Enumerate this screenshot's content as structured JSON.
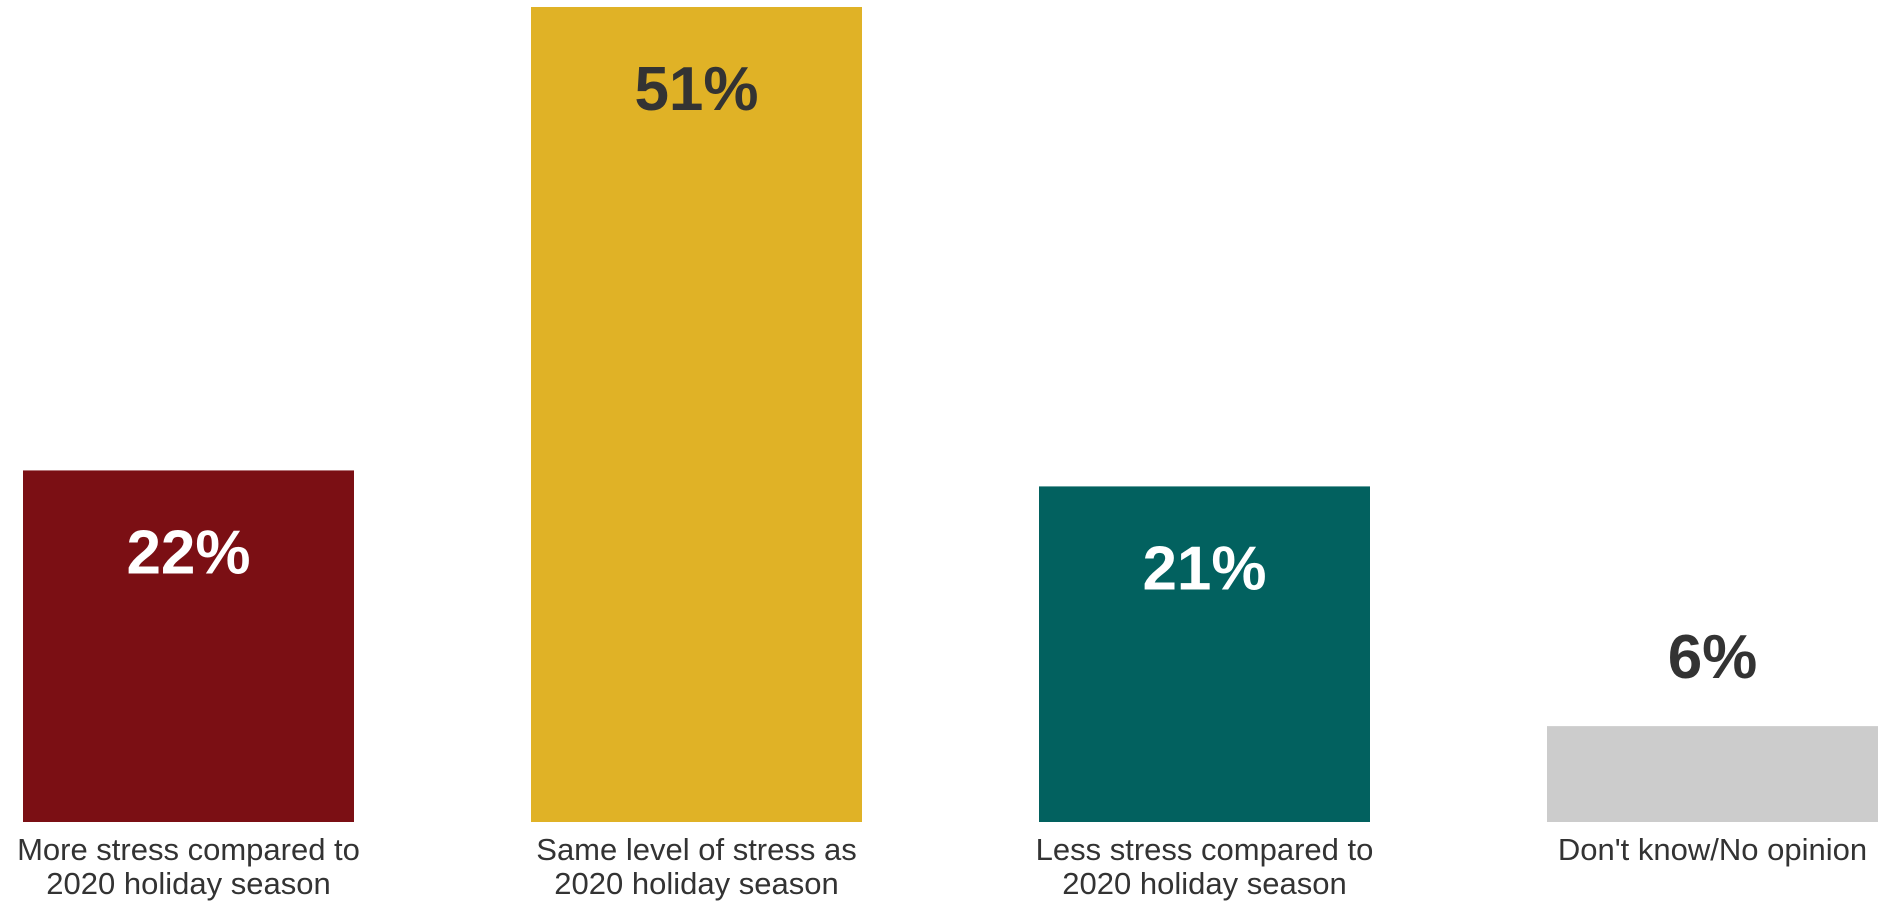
{
  "chart_data": {
    "type": "bar",
    "categories": [
      [
        "More stress compared to",
        "2020 holiday season"
      ],
      [
        "Same level of stress as",
        "2020 holiday season"
      ],
      [
        "Less stress compared to",
        "2020 holiday season"
      ],
      [
        "Don't know/No opinion"
      ]
    ],
    "values": [
      22,
      51,
      21,
      6
    ],
    "value_labels": [
      "22%",
      "51%",
      "21%",
      "6%"
    ],
    "ylim": [
      0,
      51
    ],
    "grid": false,
    "bar_colors": [
      "#7b0f14",
      "#e0b226",
      "#02615f",
      "#cccccc"
    ],
    "label_colors": [
      "#ffffff",
      "#333333",
      "#ffffff",
      "#333333"
    ],
    "label_position": [
      "inside",
      "inside",
      "inside",
      "above"
    ]
  }
}
